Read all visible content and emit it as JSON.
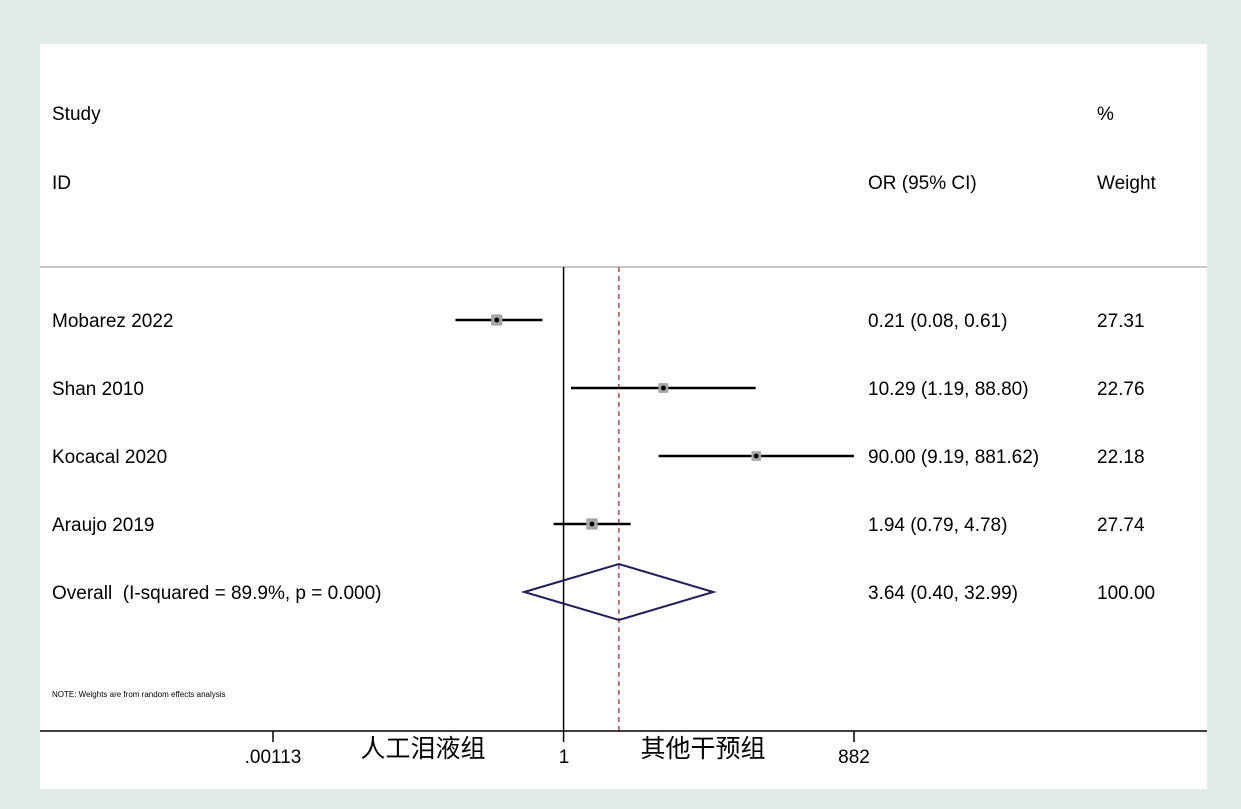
{
  "headers": {
    "study_line1": "Study",
    "study_line2": "ID",
    "or_header": "OR (95% CI)",
    "weight_line1": "%",
    "weight_line2": "Weight"
  },
  "note": "NOTE: Weights are from random effects analysis",
  "axis": {
    "tick_left": ".00113",
    "tick_center": "1",
    "tick_right": "882",
    "label_left": "人工泪液组",
    "label_right": "其他干预组"
  },
  "chart_data": {
    "type": "forest",
    "measure": "OR (95% CI)",
    "scale": "log",
    "xlim": [
      0.00113,
      882
    ],
    "null_value": 1,
    "studies": [
      {
        "id": "Mobarez 2022",
        "or": 0.21,
        "lo": 0.08,
        "hi": 0.61,
        "ci_text": "0.21 (0.08, 0.61)",
        "weight": "27.31"
      },
      {
        "id": "Shan 2010",
        "or": 10.29,
        "lo": 1.19,
        "hi": 88.8,
        "ci_text": "10.29 (1.19, 88.80)",
        "weight": "22.76"
      },
      {
        "id": "Kocacal 2020",
        "or": 90.0,
        "lo": 9.19,
        "hi": 881.62,
        "ci_text": "90.00 (9.19, 881.62)",
        "weight": "22.18"
      },
      {
        "id": "Araujo 2019",
        "or": 1.94,
        "lo": 0.79,
        "hi": 4.78,
        "ci_text": "1.94 (0.79, 4.78)",
        "weight": "27.74"
      }
    ],
    "overall": {
      "id": "Overall  (I-squared = 89.9%, p = 0.000)",
      "or": 3.64,
      "lo": 0.4,
      "hi": 32.99,
      "ci_text": "3.64 (0.40, 32.99)",
      "weight": "100.00"
    },
    "colors": {
      "ci_line": "#000000",
      "box": "#a6a6a6",
      "diamond": "#1f1f5e",
      "overall_line": "#a0202a",
      "separator": "#c8c8c8"
    }
  }
}
